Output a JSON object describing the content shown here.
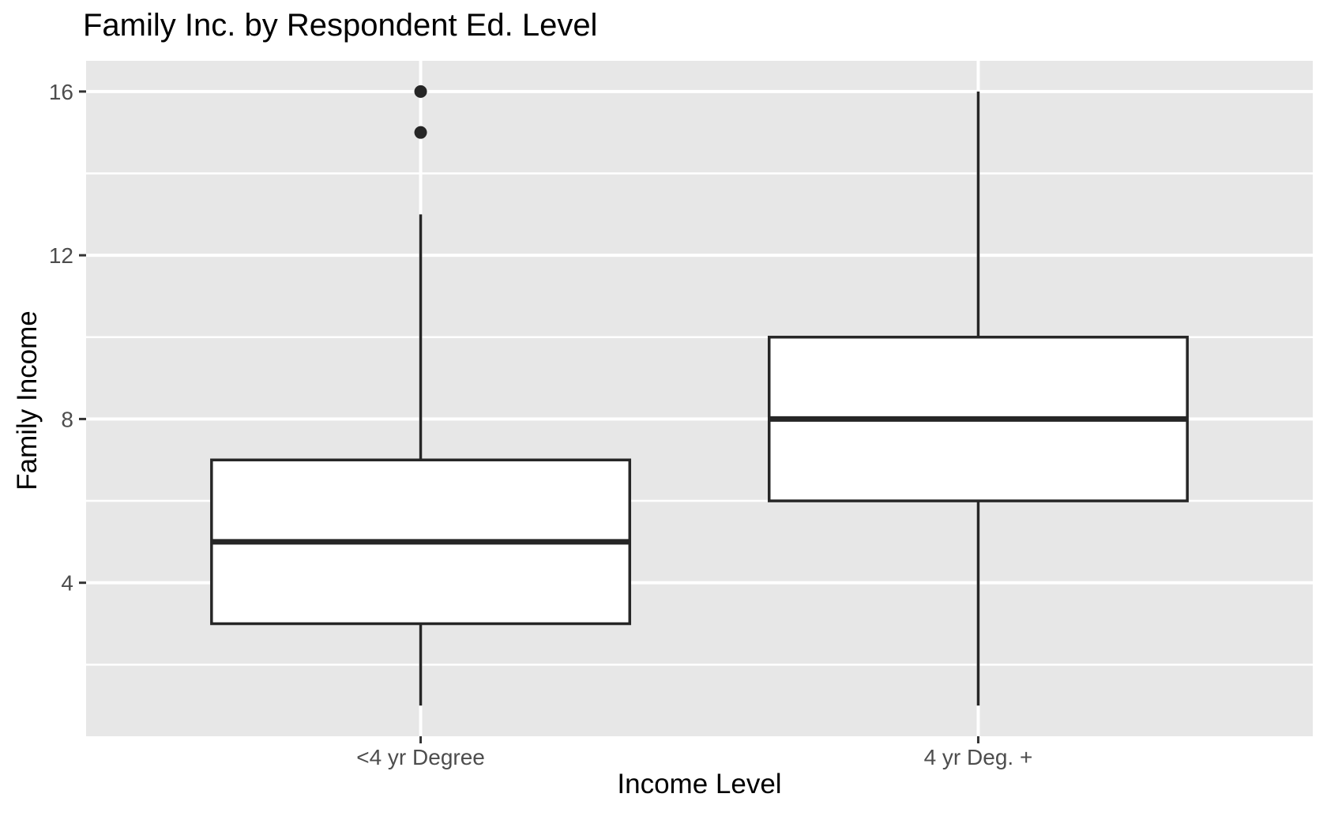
{
  "chart_data": {
    "type": "boxplot",
    "title": "Family Inc. by Respondent Ed. Level",
    "xlabel": "Income Level",
    "ylabel": "Family Income",
    "categories": [
      "<4 yr Degree",
      "4 yr Deg. +"
    ],
    "series": [
      {
        "name": "<4 yr Degree",
        "whisker_min": 1,
        "q1": 3,
        "median": 5,
        "q3": 7,
        "whisker_max": 13,
        "outliers": [
          15,
          16
        ]
      },
      {
        "name": "4 yr Deg. +",
        "whisker_min": 1,
        "q1": 6,
        "median": 8,
        "q3": 10,
        "whisker_max": 16,
        "outliers": []
      }
    ],
    "y_major_ticks": [
      4,
      8,
      12,
      16
    ],
    "y_minor_ticks": [
      2,
      6,
      10,
      14
    ],
    "ylim": [
      0.25,
      16.75
    ],
    "x_positions": [
      1,
      2
    ],
    "x_domain": [
      0.4,
      2.6
    ],
    "box_width": 0.75,
    "grid": true,
    "legend": false,
    "style": {
      "page_bg": "#FFFFFF",
      "panel_bg": "#E7E7E7",
      "grid_color": "#FFFFFF",
      "box_fill": "#FFFFFF",
      "line_color": "#262626",
      "tick_label_color": "#4D4D4D",
      "axis_title_color": "#000000",
      "title_color": "#000000",
      "tick_mark_color": "#333333"
    }
  }
}
